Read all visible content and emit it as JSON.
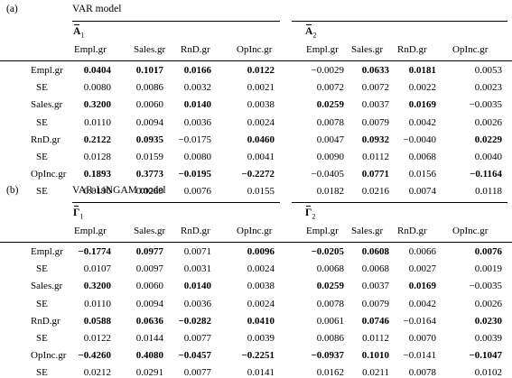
{
  "col_labels": [
    "Empl.gr",
    "Sales.gr",
    "RnD.gr",
    "OpInc.gr"
  ],
  "panels": [
    {
      "label": "(a)",
      "title": "VAR model",
      "matrices": [
        {
          "name": "A",
          "sub": "1"
        },
        {
          "name": "A",
          "sub": "2"
        }
      ],
      "rows": [
        {
          "label": "Empl.gr",
          "values": [
            "0.0404",
            "0.1017",
            "0.0166",
            "0.0122",
            "−0.0029",
            "0.0633",
            "0.0181",
            "0.0053"
          ],
          "bold": [
            1,
            1,
            1,
            1,
            0,
            1,
            1,
            0
          ]
        },
        {
          "label": "SE",
          "values": [
            "0.0080",
            "0.0086",
            "0.0032",
            "0.0021",
            "0.0072",
            "0.0072",
            "0.0022",
            "0.0023"
          ],
          "bold": [
            0,
            0,
            0,
            0,
            0,
            0,
            0,
            0
          ]
        },
        {
          "label": "Sales.gr",
          "values": [
            "0.3200",
            "0.0060",
            "0.0140",
            "0.0038",
            "0.0259",
            "0.0037",
            "0.0169",
            "−0.0035"
          ],
          "bold": [
            1,
            0,
            1,
            0,
            1,
            0,
            1,
            0
          ]
        },
        {
          "label": "SE",
          "values": [
            "0.0110",
            "0.0094",
            "0.0036",
            "0.0024",
            "0.0078",
            "0.0079",
            "0.0042",
            "0.0026"
          ],
          "bold": [
            0,
            0,
            0,
            0,
            0,
            0,
            0,
            0
          ]
        },
        {
          "label": "RnD.gr",
          "values": [
            "0.2122",
            "0.0935",
            "−0.0175",
            "0.0460",
            "0.0047",
            "0.0932",
            "−0.0040",
            "0.0229"
          ],
          "bold": [
            1,
            1,
            0,
            1,
            0,
            1,
            0,
            1
          ]
        },
        {
          "label": "SE",
          "values": [
            "0.0128",
            "0.0159",
            "0.0080",
            "0.0041",
            "0.0090",
            "0.0112",
            "0.0068",
            "0.0040"
          ],
          "bold": [
            0,
            0,
            0,
            0,
            0,
            0,
            0,
            0
          ]
        },
        {
          "label": "OpInc.gr",
          "values": [
            "0.1893",
            "0.3773",
            "−0.0195",
            "−0.2272",
            "−0.0405",
            "0.0771",
            "0.0156",
            "−0.1164"
          ],
          "bold": [
            1,
            1,
            1,
            1,
            0,
            1,
            0,
            1
          ]
        },
        {
          "label": "SE",
          "values": [
            "0.0196",
            "0.0289",
            "0.0076",
            "0.0155",
            "0.0182",
            "0.0216",
            "0.0074",
            "0.0118"
          ],
          "bold": [
            0,
            0,
            0,
            0,
            0,
            0,
            0,
            0
          ]
        }
      ]
    },
    {
      "label": "(b)",
      "title": "VAR-LiNGAM model",
      "matrices": [
        {
          "name": "Γ",
          "sub": "1"
        },
        {
          "name": "Γ",
          "sub": "2"
        }
      ],
      "rows": [
        {
          "label": "Empl.gr",
          "values": [
            "−0.1774",
            "0.0977",
            "0.0071",
            "0.0096",
            "−0.0205",
            "0.0608",
            "0.0066",
            "0.0076"
          ],
          "bold": [
            1,
            1,
            0,
            1,
            1,
            1,
            0,
            1
          ]
        },
        {
          "label": "SE",
          "values": [
            "0.0107",
            "0.0097",
            "0.0031",
            "0.0024",
            "0.0068",
            "0.0068",
            "0.0027",
            "0.0019"
          ],
          "bold": [
            0,
            0,
            0,
            0,
            0,
            0,
            0,
            0
          ]
        },
        {
          "label": "Sales.gr",
          "values": [
            "0.3200",
            "0.0060",
            "0.0140",
            "0.0038",
            "0.0259",
            "0.0037",
            "0.0169",
            "−0.0035"
          ],
          "bold": [
            1,
            0,
            1,
            0,
            1,
            0,
            1,
            0
          ]
        },
        {
          "label": "SE",
          "values": [
            "0.0110",
            "0.0094",
            "0.0036",
            "0.0024",
            "0.0078",
            "0.0079",
            "0.0042",
            "0.0026"
          ],
          "bold": [
            0,
            0,
            0,
            0,
            0,
            0,
            0,
            0
          ]
        },
        {
          "label": "RnD.gr",
          "values": [
            "0.0588",
            "0.0636",
            "−0.0282",
            "0.0410",
            "0.0061",
            "0.0746",
            "−0.0164",
            "0.0230"
          ],
          "bold": [
            1,
            1,
            1,
            1,
            0,
            1,
            0,
            1
          ]
        },
        {
          "label": "SE",
          "values": [
            "0.0122",
            "0.0144",
            "0.0077",
            "0.0039",
            "0.0086",
            "0.0112",
            "0.0070",
            "0.0039"
          ],
          "bold": [
            0,
            0,
            0,
            0,
            0,
            0,
            0,
            0
          ]
        },
        {
          "label": "OpInc.gr",
          "values": [
            "−0.4260",
            "0.4080",
            "−0.0457",
            "−0.2251",
            "−0.0937",
            "0.1010",
            "−0.0141",
            "−0.1047"
          ],
          "bold": [
            1,
            1,
            1,
            1,
            1,
            1,
            0,
            1
          ]
        },
        {
          "label": "SE",
          "values": [
            "0.0212",
            "0.0291",
            "0.0077",
            "0.0141",
            "0.0162",
            "0.0211",
            "0.0078",
            "0.0102"
          ],
          "bold": [
            0,
            0,
            0,
            0,
            0,
            0,
            0,
            0
          ]
        }
      ]
    }
  ]
}
